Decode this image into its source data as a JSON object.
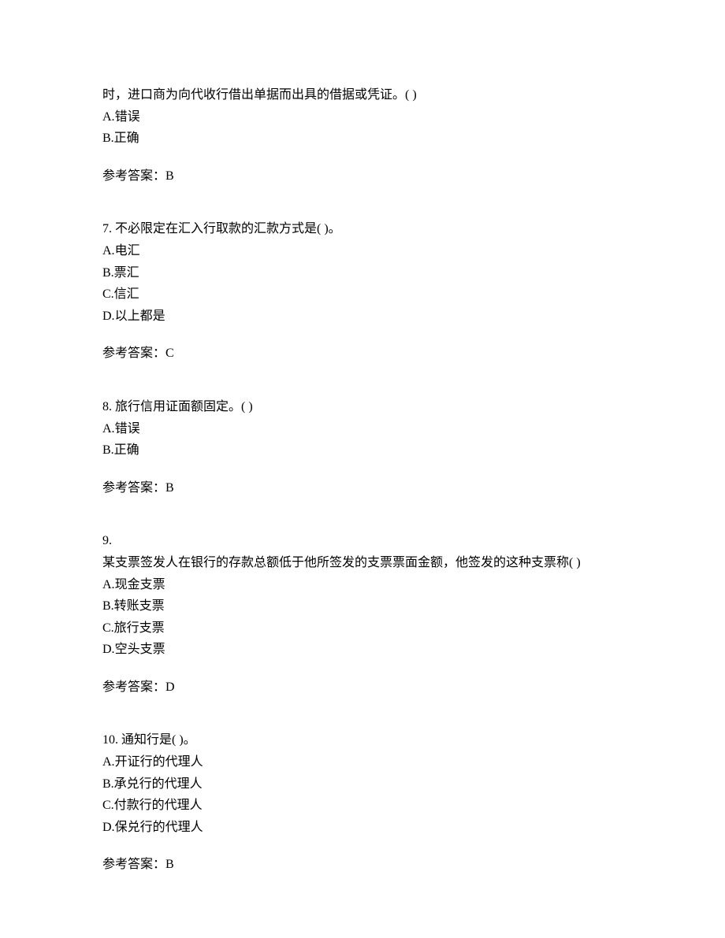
{
  "questions": [
    {
      "number": "",
      "text": "时，进口商为向代收行借出单据而出具的借据或凭证。(   )",
      "options": [
        {
          "label": "A.",
          "text": "错误"
        },
        {
          "label": "B.",
          "text": "正确"
        }
      ],
      "answer_label": "参考答案：",
      "answer_value": "B"
    },
    {
      "number": "7.",
      "text": "  不必限定在汇入行取款的汇款方式是(   )。",
      "options": [
        {
          "label": "A.",
          "text": "电汇"
        },
        {
          "label": "B.",
          "text": "票汇"
        },
        {
          "label": "C.",
          "text": "信汇"
        },
        {
          "label": "D.",
          "text": "以上都是"
        }
      ],
      "answer_label": "参考答案：",
      "answer_value": "C"
    },
    {
      "number": "8.",
      "text": "  旅行信用证面额固定。(   )",
      "options": [
        {
          "label": "A.",
          "text": "错误"
        },
        {
          "label": "B.",
          "text": "正确"
        }
      ],
      "answer_label": "参考答案：",
      "answer_value": "B"
    },
    {
      "number": "9.",
      "text_line1": "",
      "text_line2": "某支票签发人在银行的存款总额低于他所签发的支票票面金额，他签发的这种支票称(   )",
      "options": [
        {
          "label": "A.",
          "text": "现金支票"
        },
        {
          "label": "B.",
          "text": "转账支票"
        },
        {
          "label": "C.",
          "text": "旅行支票"
        },
        {
          "label": "D.",
          "text": "空头支票"
        }
      ],
      "answer_label": "参考答案：",
      "answer_value": "D"
    },
    {
      "number": "10.",
      "text": "  通知行是(   )。",
      "options": [
        {
          "label": "A.",
          "text": "开证行的代理人"
        },
        {
          "label": "B.",
          "text": "承兑行的代理人"
        },
        {
          "label": "C.",
          "text": "付款行的代理人"
        },
        {
          "label": "D.",
          "text": "保兑行的代理人"
        }
      ],
      "answer_label": "参考答案：",
      "answer_value": "B"
    }
  ]
}
